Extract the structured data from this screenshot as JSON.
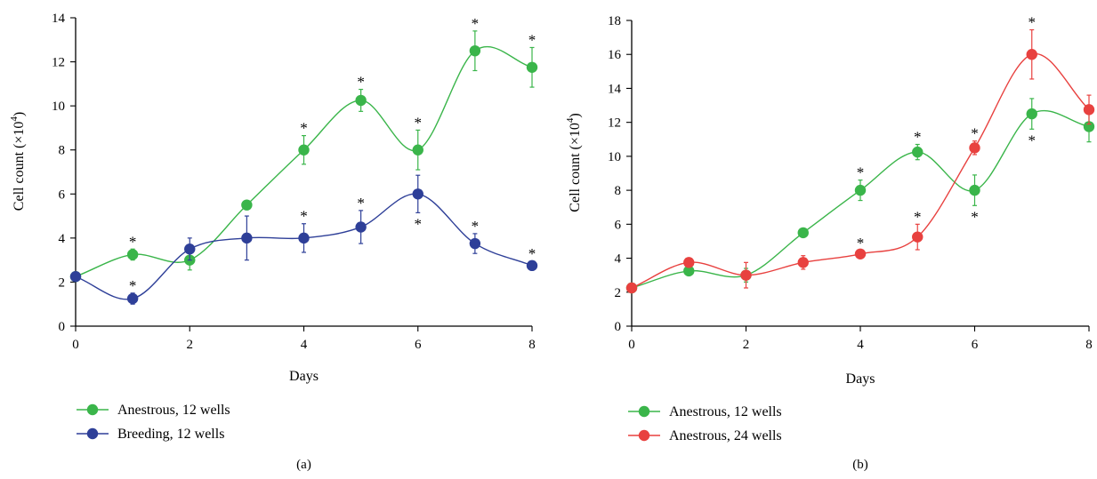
{
  "chart_data": [
    {
      "type": "line",
      "panel_label": "(a)",
      "xlabel": "Days",
      "ylabel": "Cell count (×10",
      "ylabel_sup": "4",
      "ylabel_close": ")",
      "xlim": [
        0,
        8
      ],
      "ylim": [
        0,
        14
      ],
      "xticks": [
        0,
        2,
        4,
        6,
        8
      ],
      "yticks": [
        0,
        2,
        4,
        6,
        8,
        10,
        12,
        14
      ],
      "grid": false,
      "legend_position": "bottom-left",
      "series": [
        {
          "name": "Anestrous, 12 wells",
          "color": "#3ab54a",
          "x": [
            0,
            1,
            2,
            3,
            4,
            5,
            6,
            7,
            8
          ],
          "values": [
            2.25,
            3.25,
            3.0,
            5.5,
            8.0,
            10.25,
            8.0,
            12.5,
            11.75
          ],
          "errors": [
            0.0,
            0.25,
            0.45,
            0.2,
            0.65,
            0.5,
            0.9,
            0.9,
            0.9
          ],
          "significant": [
            false,
            true,
            false,
            false,
            true,
            true,
            true,
            true,
            true
          ],
          "star_position": [
            "",
            "above",
            "",
            "",
            "above",
            "above",
            "above",
            "above",
            "above"
          ]
        },
        {
          "name": "Breeding, 12 wells",
          "color": "#2e3f98",
          "x": [
            0,
            1,
            2,
            3,
            4,
            5,
            6,
            7,
            8
          ],
          "values": [
            2.25,
            1.25,
            3.5,
            4.0,
            4.0,
            4.5,
            6.0,
            3.75,
            2.75
          ],
          "errors": [
            0.0,
            0.25,
            0.5,
            1.0,
            0.65,
            0.75,
            0.85,
            0.45,
            0.2
          ],
          "significant": [
            false,
            true,
            false,
            false,
            true,
            true,
            true,
            true,
            true
          ],
          "star_position": [
            "",
            "above",
            "",
            "",
            "above",
            "above",
            "below",
            "above",
            "above"
          ]
        }
      ]
    },
    {
      "type": "line",
      "panel_label": "(b)",
      "xlabel": "Days",
      "ylabel": "Cell count (×10",
      "ylabel_sup": "4",
      "ylabel_close": ")",
      "xlim": [
        0,
        8
      ],
      "ylim": [
        0,
        18
      ],
      "xticks": [
        0,
        2,
        4,
        6,
        8
      ],
      "yticks": [
        0,
        2,
        4,
        6,
        8,
        10,
        12,
        14,
        16,
        18
      ],
      "grid": false,
      "legend_position": "bottom-left",
      "series": [
        {
          "name": "Anestrous, 12 wells",
          "color": "#3ab54a",
          "x": [
            0,
            1,
            2,
            3,
            4,
            5,
            6,
            7,
            8
          ],
          "values": [
            2.25,
            3.25,
            3.0,
            5.5,
            8.0,
            10.25,
            8.0,
            12.5,
            11.75
          ],
          "errors": [
            0.0,
            0.2,
            0.4,
            0.2,
            0.6,
            0.45,
            0.9,
            0.9,
            0.9
          ],
          "significant": [
            false,
            false,
            false,
            false,
            true,
            true,
            true,
            true,
            false
          ],
          "star_position": [
            "",
            "",
            "",
            "",
            "above",
            "above",
            "below",
            "below",
            ""
          ]
        },
        {
          "name": "Anestrous, 24 wells",
          "color": "#e8413f",
          "x": [
            0,
            1,
            2,
            3,
            4,
            5,
            6,
            7,
            8
          ],
          "values": [
            2.25,
            3.75,
            3.0,
            3.75,
            4.25,
            5.25,
            10.5,
            16.0,
            12.75
          ],
          "errors": [
            0.0,
            0.15,
            0.75,
            0.4,
            0.2,
            0.75,
            0.4,
            1.45,
            0.85
          ],
          "significant": [
            false,
            false,
            false,
            false,
            true,
            true,
            true,
            true,
            false
          ],
          "star_position": [
            "",
            "",
            "",
            "",
            "above",
            "above",
            "above",
            "above",
            ""
          ]
        }
      ]
    }
  ]
}
